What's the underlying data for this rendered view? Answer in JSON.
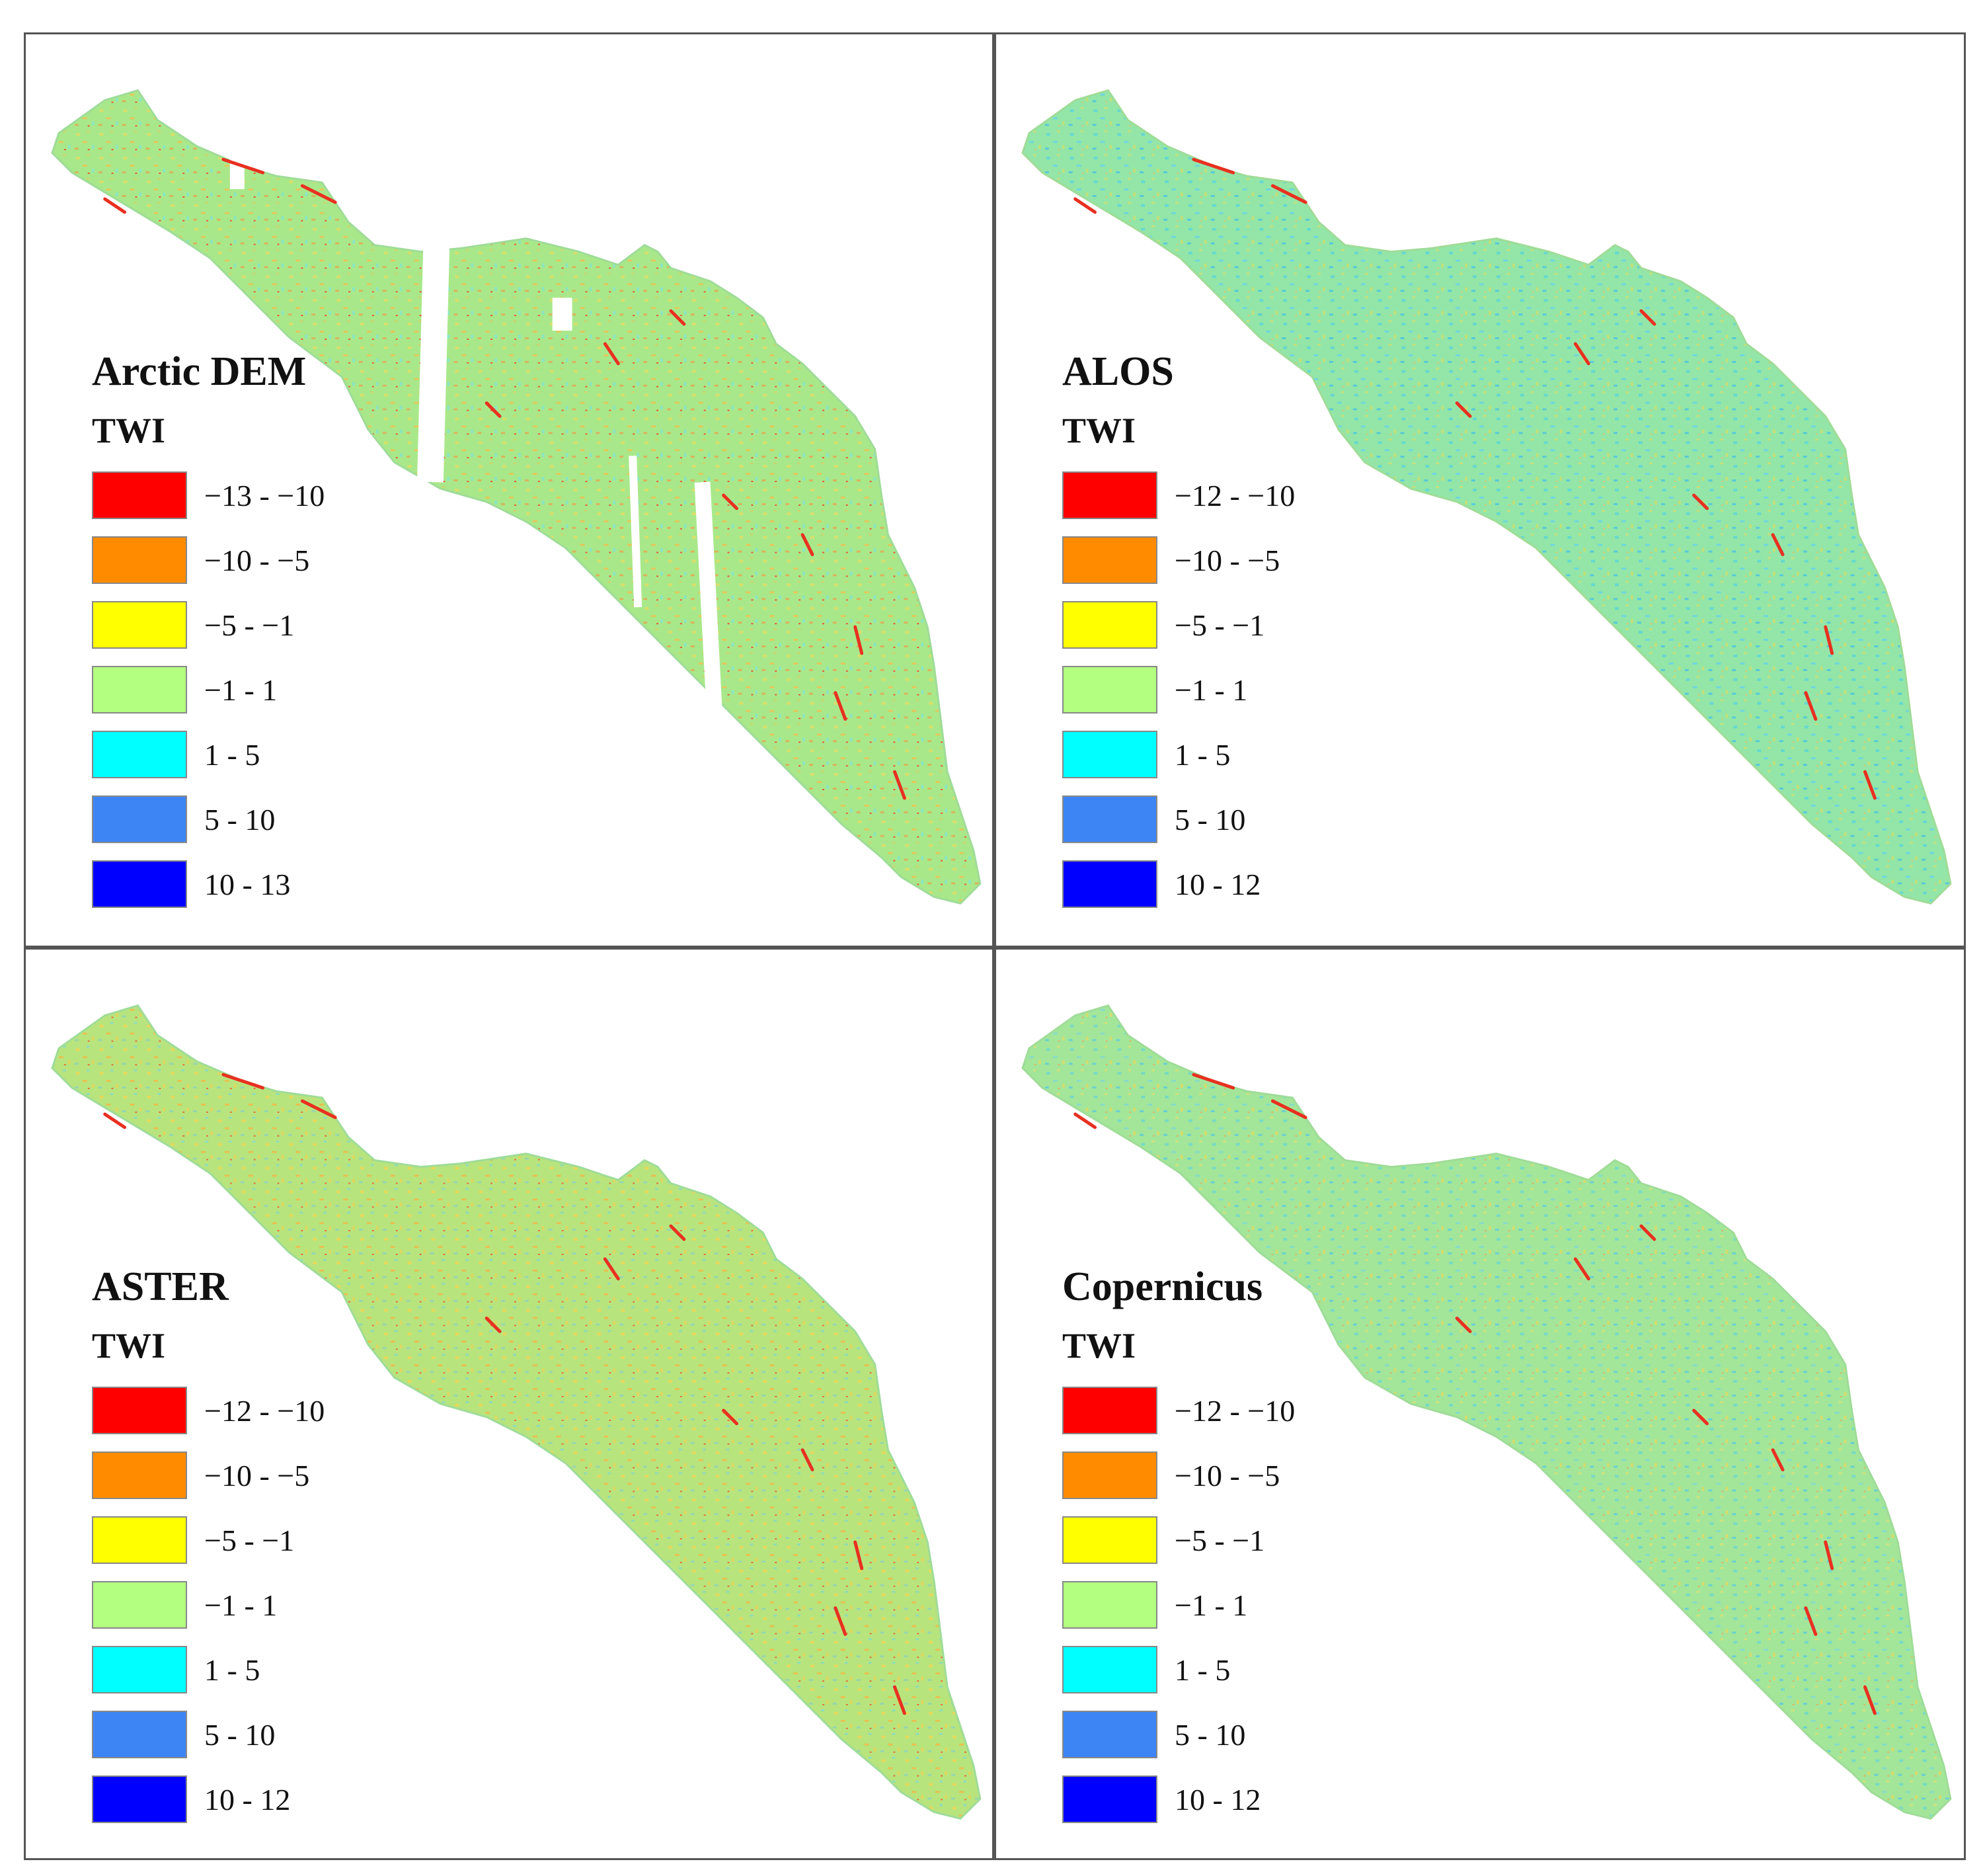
{
  "panels": [
    {
      "title": "Arctic DEM",
      "subtitle": "TWI",
      "pattern": "arctic-dem-pattern",
      "gaps": true,
      "legend": [
        {
          "label": "−13 - −10",
          "color": "#ff0000"
        },
        {
          "label": "−10 - −5",
          "color": "#ff8c00"
        },
        {
          "label": "−5 - −1",
          "color": "#ffff00"
        },
        {
          "label": "−1 - 1",
          "color": "#b3ff80"
        },
        {
          "label": "1 - 5",
          "color": "#00ffff"
        },
        {
          "label": "5 - 10",
          "color": "#3d85f5"
        },
        {
          "label": "10 - 13",
          "color": "#0000ff"
        }
      ]
    },
    {
      "title": "ALOS",
      "subtitle": "TWI",
      "pattern": "alos-pattern",
      "gaps": false,
      "legend": [
        {
          "label": "−12 - −10",
          "color": "#ff0000"
        },
        {
          "label": "−10 - −5",
          "color": "#ff8c00"
        },
        {
          "label": "−5 - −1",
          "color": "#ffff00"
        },
        {
          "label": "−1 - 1",
          "color": "#b3ff80"
        },
        {
          "label": "1 - 5",
          "color": "#00ffff"
        },
        {
          "label": "5 - 10",
          "color": "#3d85f5"
        },
        {
          "label": "10 - 12",
          "color": "#0000ff"
        }
      ]
    },
    {
      "title": "ASTER",
      "subtitle": "TWI",
      "pattern": "aster-pattern",
      "gaps": false,
      "legend": [
        {
          "label": "−12 - −10",
          "color": "#ff0000"
        },
        {
          "label": "−10 - −5",
          "color": "#ff8c00"
        },
        {
          "label": "−5 - −1",
          "color": "#ffff00"
        },
        {
          "label": "−1 - 1",
          "color": "#b3ff80"
        },
        {
          "label": "1 - 5",
          "color": "#00ffff"
        },
        {
          "label": "5 - 10",
          "color": "#3d85f5"
        },
        {
          "label": "10 - 12",
          "color": "#0000ff"
        }
      ]
    },
    {
      "title": "Copernicus",
      "subtitle": "TWI",
      "pattern": "copernicus-pattern",
      "gaps": false,
      "legend": [
        {
          "label": "−12 - −10",
          "color": "#ff0000"
        },
        {
          "label": "−10 - −5",
          "color": "#ff8c00"
        },
        {
          "label": "−5 - −1",
          "color": "#ffff00"
        },
        {
          "label": "−1 - 1",
          "color": "#b3ff80"
        },
        {
          "label": "1 - 5",
          "color": "#00ffff"
        },
        {
          "label": "5 - 10",
          "color": "#3d85f5"
        },
        {
          "label": "10 - 12",
          "color": "#0000ff"
        }
      ]
    }
  ]
}
